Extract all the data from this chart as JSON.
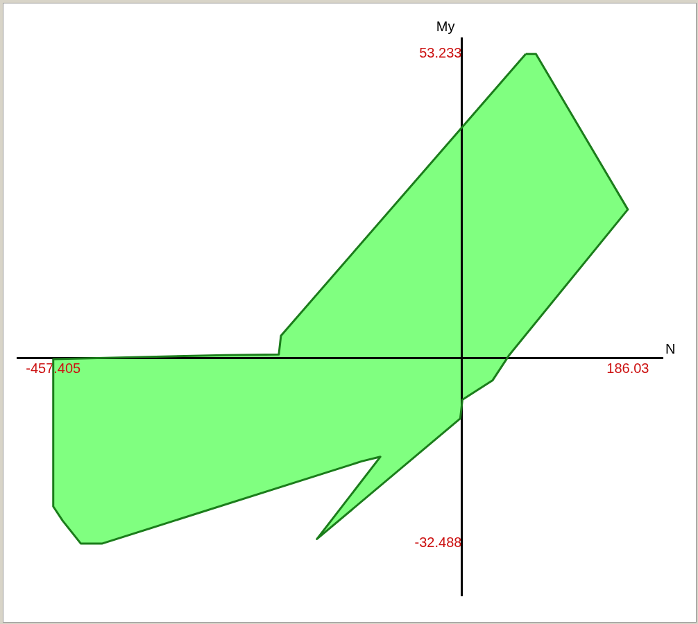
{
  "chart_data": {
    "type": "area",
    "xlabel": "N",
    "ylabel": "My",
    "legend": false,
    "marker": "none",
    "xlim": [
      -497.6,
      225
    ],
    "ylim": [
      -41.6,
      56
    ],
    "xticks": [
      {
        "value": -457.405,
        "label": "-457.405"
      },
      {
        "value": 186.03,
        "label": "186.03"
      }
    ],
    "yticks": [
      {
        "value": -32.488,
        "label": "-32.488"
      },
      {
        "value": 53.233,
        "label": "53.233"
      }
    ],
    "x": [
      71.8,
      83.1,
      186.03,
      53.2,
      34.7,
      0.8,
      -1.6,
      -162.1,
      -91.1,
      -112.1,
      -402.4,
      -426.6,
      -446.8,
      -457.405,
      -457.405,
      -265.3,
      -204.8,
      -202.4
    ],
    "series": [
      {
        "color": "#1b7d1b",
        "values": [
          53.233,
          53.233,
          26.0,
          0.5,
          -3.9,
          -7.3,
          -10.6,
          -31.7,
          -17.3,
          -18.1,
          -32.488,
          -32.488,
          -28.5,
          -26.0,
          -0.2,
          0.5,
          0.6,
          3.9
        ]
      }
    ]
  }
}
